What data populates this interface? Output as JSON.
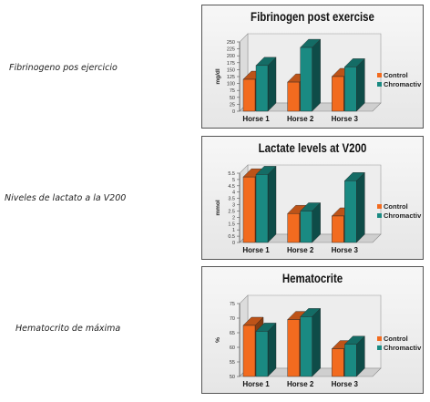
{
  "side_labels": [
    "Fibrinogeno pos ejercicio",
    "Niveles de lactato a la V200",
    "Hematocrito de máxima"
  ],
  "colors": {
    "control": "#f26b1f",
    "chromactiv": "#1a8a82"
  },
  "chart_data": [
    {
      "type": "bar",
      "title": "Fibrinogen post exercise",
      "ylabel": "mg/dl",
      "ylim": [
        0,
        250
      ],
      "yticks": [
        0,
        25,
        50,
        75,
        100,
        125,
        150,
        175,
        200,
        225,
        250
      ],
      "categories": [
        "Horse 1",
        "Horse 2",
        "Horse 3"
      ],
      "series": [
        {
          "name": "Control",
          "values": [
            115,
            105,
            125
          ]
        },
        {
          "name": "Chromactiv",
          "values": [
            165,
            230,
            160
          ]
        }
      ]
    },
    {
      "type": "bar",
      "title": "Lactate levels at V200",
      "ylabel": "mmol",
      "ylim": [
        0,
        5.5
      ],
      "yticks": [
        0,
        0.5,
        1,
        1.5,
        2,
        2.5,
        3,
        3.5,
        4,
        4.5,
        5,
        5.5
      ],
      "categories": [
        "Horse 1",
        "Horse 2",
        "Horse 3"
      ],
      "series": [
        {
          "name": "Control",
          "values": [
            5.2,
            2.3,
            2.1
          ]
        },
        {
          "name": "Chromactiv",
          "values": [
            5.4,
            2.5,
            4.9
          ]
        }
      ]
    },
    {
      "type": "bar",
      "title": "Hematocrite",
      "ylabel": "%",
      "ylim": [
        50,
        75
      ],
      "yticks": [
        50,
        55,
        60,
        65,
        70,
        75
      ],
      "categories": [
        "Horse 1",
        "Horse 2",
        "Horse 3"
      ],
      "series": [
        {
          "name": "Control",
          "values": [
            67.5,
            69.5,
            59.5
          ]
        },
        {
          "name": "Chromactiv",
          "values": [
            65.5,
            70.5,
            61
          ]
        }
      ]
    }
  ]
}
